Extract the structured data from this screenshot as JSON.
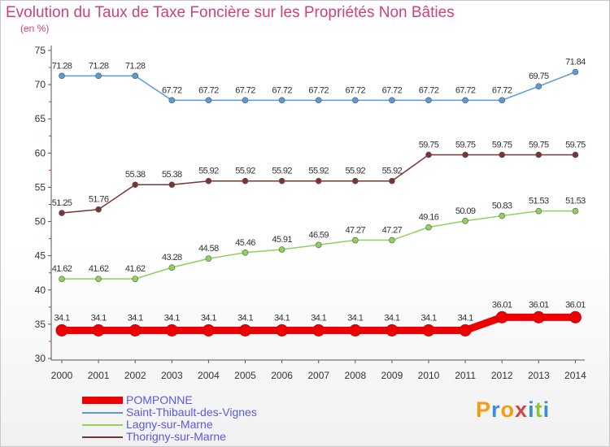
{
  "chart_data": {
    "type": "line",
    "title": "Evolution du Taux de Taxe Foncière sur les Propriétés Non Bâties",
    "ylabel": "(en %)",
    "xlabel": "",
    "ylim": [
      30,
      75
    ],
    "yticks": [
      "30",
      "35",
      "40",
      "45",
      "50",
      "55",
      "60",
      "65",
      "70",
      "75"
    ],
    "categories": [
      "2000",
      "2001",
      "2002",
      "2003",
      "2004",
      "2005",
      "2006",
      "2007",
      "2008",
      "2009",
      "2010",
      "2011",
      "2012",
      "2013",
      "2014"
    ],
    "series": [
      {
        "name": "POMPONNE",
        "color": "#ee0000",
        "values": [
          34.1,
          34.1,
          34.1,
          34.1,
          34.1,
          34.1,
          34.1,
          34.1,
          34.1,
          34.1,
          34.1,
          34.1,
          36.01,
          36.01,
          36.01
        ],
        "labels": [
          "34.1",
          "34.1",
          "34.1",
          "34.1",
          "34.1",
          "34.1",
          "34.1",
          "34.1",
          "34.1",
          "34.1",
          "34.1",
          "34.1",
          "36.01",
          "36.01",
          "36.01"
        ]
      },
      {
        "name": "Saint-Thibault-des-Vignes",
        "color": "#5b9bd5",
        "values": [
          71.28,
          71.28,
          71.28,
          67.72,
          67.72,
          67.72,
          67.72,
          67.72,
          67.72,
          67.72,
          67.72,
          67.72,
          67.72,
          69.75,
          71.84
        ],
        "labels": [
          "71.28",
          "71.28",
          "71.28",
          "67.72",
          "67.72",
          "67.72",
          "67.72",
          "67.72",
          "67.72",
          "67.72",
          "67.72",
          "67.72",
          "67.72",
          "69.75",
          "71.84"
        ]
      },
      {
        "name": "Lagny-sur-Marne",
        "color": "#8fd15a",
        "values": [
          41.62,
          41.62,
          41.62,
          43.28,
          44.58,
          45.46,
          45.91,
          46.59,
          47.27,
          47.27,
          49.16,
          50.09,
          50.83,
          51.53,
          51.53
        ],
        "labels": [
          "41.62",
          "41.62",
          "41.62",
          "43.28",
          "44.58",
          "45.46",
          "45.91",
          "46.59",
          "47.27",
          "47.27",
          "49.16",
          "50.09",
          "50.83",
          "51.53",
          "51.53"
        ]
      },
      {
        "name": "Thorigny-sur-Marne",
        "color": "#7a3434",
        "values": [
          51.25,
          51.76,
          55.38,
          55.38,
          55.92,
          55.92,
          55.92,
          55.92,
          55.92,
          55.92,
          59.75,
          59.75,
          59.75,
          59.75,
          59.75
        ],
        "labels": [
          "51.25",
          "51.76",
          "55.38",
          "55.38",
          "55.92",
          "55.92",
          "55.92",
          "55.92",
          "55.92",
          "55.92",
          "59.75",
          "59.75",
          "59.75",
          "59.75",
          "59.75"
        ]
      }
    ],
    "legend_position": "bottom-left",
    "grid": false
  },
  "logo": {
    "letters": [
      "P",
      "r",
      "o",
      "x",
      "i",
      "t",
      "i"
    ],
    "colors": [
      "#f39c12",
      "#3b8fd6",
      "#f39c12",
      "#d64545",
      "#3b8fd6",
      "#8cc63f",
      "#3b8fd6"
    ]
  }
}
